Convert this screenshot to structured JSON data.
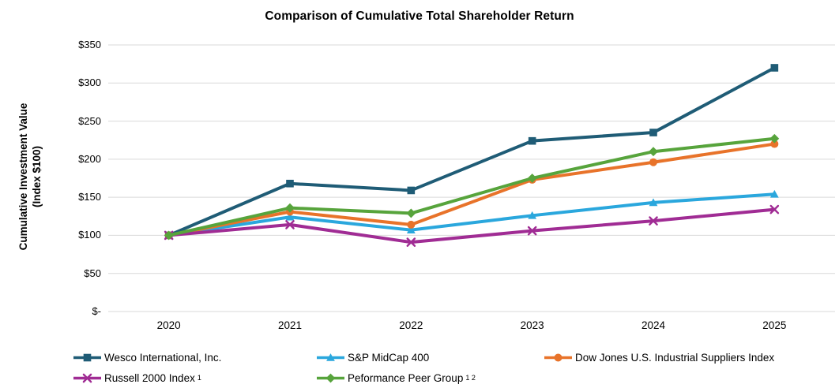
{
  "title": "Comparison of Cumulative Total Shareholder Return",
  "y_axis_title": {
    "line1": "Cumulative Investment Value",
    "line2": "(Index $100)"
  },
  "chart_data": {
    "type": "line",
    "categories": [
      "2020",
      "2021",
      "2022",
      "2023",
      "2024",
      "2025"
    ],
    "series": [
      {
        "name": "Wesco International, Inc.",
        "sup": "",
        "color": "#1F5C76",
        "marker": "square",
        "values": [
          100,
          168,
          159,
          224,
          235,
          320
        ]
      },
      {
        "name": "S&P MidCap 400",
        "sup": "",
        "color": "#2AA7DD",
        "marker": "triangle",
        "values": [
          100,
          124,
          107,
          126,
          143,
          154
        ]
      },
      {
        "name": "Dow Jones U.S. Industrial Suppliers Index",
        "sup": "",
        "color": "#E8732A",
        "marker": "circle",
        "values": [
          100,
          131,
          114,
          173,
          196,
          220
        ]
      },
      {
        "name": "Russell 2000 Index",
        "sup": "1",
        "color": "#A02C94",
        "marker": "x",
        "values": [
          100,
          114,
          91,
          106,
          119,
          134
        ]
      },
      {
        "name": "Peformance Peer Group",
        "sup": "1 2",
        "color": "#57A43C",
        "marker": "diamond",
        "values": [
          100,
          136,
          129,
          175,
          210,
          227
        ]
      }
    ],
    "y_ticks": [
      {
        "value": 350,
        "label": "$350"
      },
      {
        "value": 300,
        "label": "$300"
      },
      {
        "value": 250,
        "label": "$250"
      },
      {
        "value": 200,
        "label": "$200"
      },
      {
        "value": 150,
        "label": "$150"
      },
      {
        "value": 100,
        "label": "$100"
      },
      {
        "value": 50,
        "label": "$50"
      },
      {
        "value": 0,
        "label": "$-"
      }
    ],
    "ylim": [
      0,
      350
    ],
    "grid": true,
    "legend_position": "bottom",
    "legend_layout": {
      "rows": [
        [
          0,
          1,
          2
        ],
        [
          3,
          4
        ]
      ]
    }
  },
  "colors": {
    "gridline": "#D9D9D9",
    "text": "#000000",
    "background": "#FFFFFF"
  }
}
